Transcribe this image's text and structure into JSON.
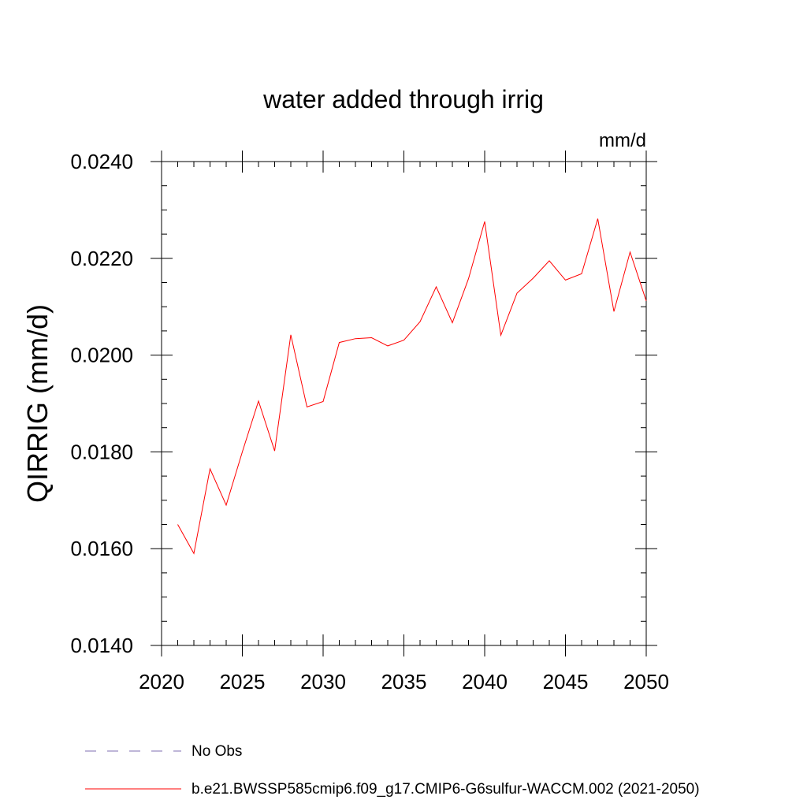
{
  "chart_data": {
    "type": "line",
    "title": "water added through irrig",
    "units": "mm/d",
    "xlabel": "",
    "ylabel": "QIRRIG  (mm/d)",
    "xlim": [
      2020,
      2050
    ],
    "ylim": [
      0.014,
      0.024
    ],
    "x_ticks": [
      2020,
      2025,
      2030,
      2035,
      2040,
      2045,
      2050
    ],
    "y_ticks": [
      0.014,
      0.016,
      0.018,
      0.02,
      0.022,
      0.024
    ],
    "x_tick_labels": [
      "2020",
      "2025",
      "2030",
      "2035",
      "2040",
      "2045",
      "2050"
    ],
    "y_tick_labels": [
      "0.0140",
      "0.0160",
      "0.0180",
      "0.0200",
      "0.0220",
      "0.0240"
    ],
    "grid": false,
    "legend_position": "bottom",
    "legend": [
      {
        "label": "No Obs",
        "style": "dashed",
        "color": "#7f6fb0"
      },
      {
        "label": "b.e21.BWSSP585cmip6.f09_g17.CMIP6-G6sulfur-WACCM.002 (2021-2050)",
        "style": "solid",
        "color": "#ff0000"
      }
    ],
    "series": [
      {
        "color": "#ff0000",
        "x": [
          2021,
          2022,
          2023,
          2024,
          2025,
          2026,
          2027,
          2028,
          2029,
          2030,
          2031,
          2032,
          2033,
          2034,
          2035,
          2036,
          2037,
          2038,
          2039,
          2040,
          2041,
          2042,
          2043,
          2044,
          2045,
          2046,
          2047,
          2048,
          2049,
          2050
        ],
        "values": [
          0.0165,
          0.0159,
          0.01765,
          0.0169,
          0.018,
          0.01905,
          0.01802,
          0.02042,
          0.01893,
          0.01904,
          0.02026,
          0.02034,
          0.02036,
          0.02019,
          0.02031,
          0.02069,
          0.02141,
          0.02067,
          0.02158,
          0.02276,
          0.02041,
          0.02128,
          0.02159,
          0.02195,
          0.02155,
          0.02168,
          0.02282,
          0.0209,
          0.02213,
          0.02112
        ]
      }
    ]
  }
}
